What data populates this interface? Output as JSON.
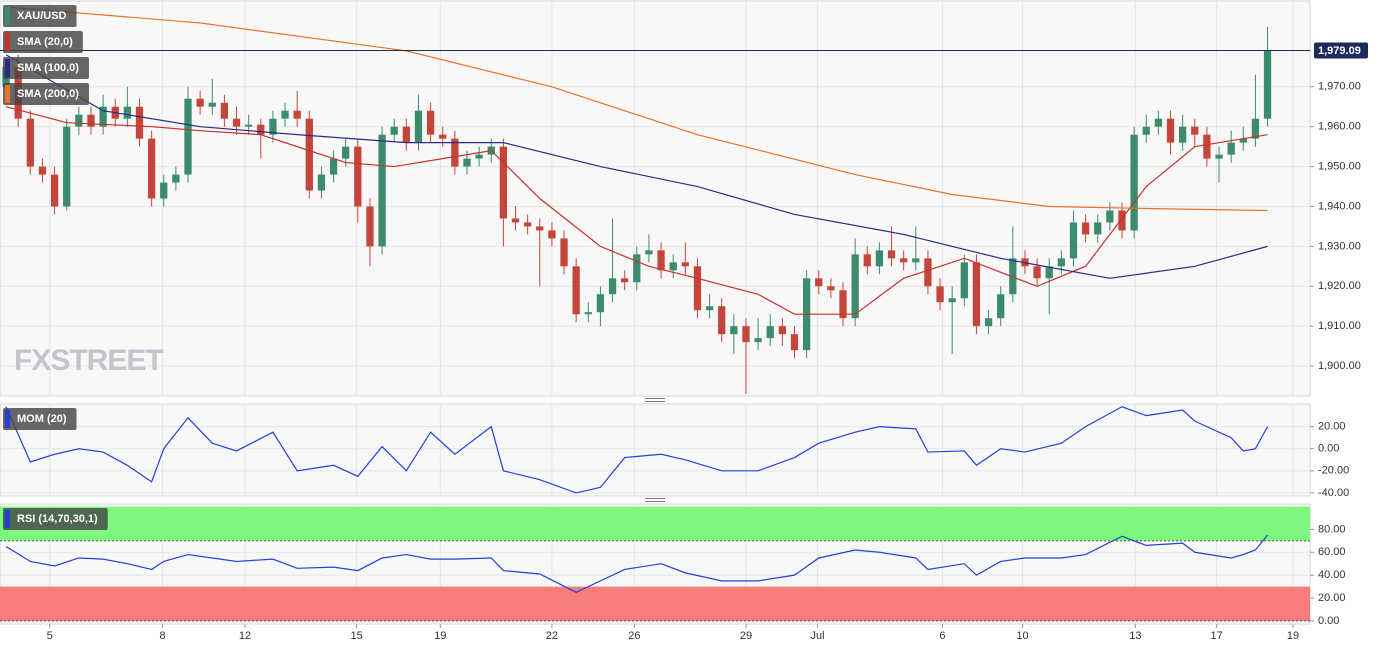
{
  "chart_data": [
    {
      "type": "candlestick",
      "title": "XAU/USD",
      "watermark": "FXSTREET",
      "up_color": "#3a8c6c",
      "down_color": "#c5453a",
      "xlim": [
        -0.5,
        107.5
      ],
      "ylim": [
        1892.5,
        1991.5
      ],
      "yticks": [
        {
          "value": 1900,
          "label": "1,900.00"
        },
        {
          "value": 1910,
          "label": "1,910.00"
        },
        {
          "value": 1920,
          "label": "1,920.00"
        },
        {
          "value": 1930,
          "label": "1,930.00"
        },
        {
          "value": 1940,
          "label": "1,940.00"
        },
        {
          "value": 1950,
          "label": "1,950.00"
        },
        {
          "value": 1960,
          "label": "1,960.00"
        },
        {
          "value": 1970,
          "label": "1,970.00"
        }
      ],
      "last_price": {
        "value": 1979.09,
        "label": "1,979.09"
      },
      "grid": true,
      "open": [
        1970,
        1975,
        1962,
        1950,
        1948,
        1940,
        1960,
        1963,
        1960,
        1965,
        1962,
        1965,
        1957,
        1942,
        1946,
        1948,
        1967,
        1965,
        1966,
        1962,
        1960,
        1960.5,
        1958,
        1962,
        1964,
        1962,
        1944,
        1948,
        1952,
        1955,
        1940,
        1930,
        1958,
        1960,
        1956,
        1964,
        1958,
        1957,
        1950,
        1952,
        1953,
        1955,
        1937,
        1936,
        1935,
        1934,
        1932,
        1925,
        1913,
        1913.5,
        1918,
        1922,
        1921,
        1928,
        1929,
        1924,
        1926,
        1925,
        1914,
        1915,
        1908,
        1910,
        1906,
        1907,
        1910,
        1908,
        1904,
        1922,
        1920,
        1919,
        1912,
        1928,
        1925,
        1929,
        1927,
        1926,
        1927,
        1920,
        1916,
        1917,
        1926,
        1910,
        1912,
        1918,
        1927,
        1925,
        1922,
        1925,
        1927,
        1936,
        1933,
        1936,
        1939,
        1934,
        1958,
        1960,
        1962,
        1956,
        1960,
        1958,
        1952,
        1953,
        1956,
        1957,
        1962
      ],
      "high": [
        1977,
        1978,
        1964,
        1952,
        1950,
        1962,
        1965,
        1965,
        1968,
        1967,
        1970,
        1967,
        1959,
        1948,
        1950,
        1970,
        1969,
        1972,
        1968,
        1965,
        1963,
        1962,
        1964,
        1966,
        1969,
        1964,
        1950,
        1954,
        1957,
        1957,
        1942,
        1960,
        1962,
        1962,
        1968,
        1966,
        1960,
        1959,
        1954,
        1955,
        1957,
        1957,
        1940,
        1938,
        1937,
        1936,
        1934,
        1927,
        1916,
        1920,
        1937,
        1924,
        1930,
        1933,
        1931,
        1928,
        1931,
        1927,
        1918,
        1917,
        1913,
        1912,
        1912,
        1913,
        1912,
        1910,
        1924,
        1924,
        1922,
        1921,
        1932,
        1930,
        1931,
        1935,
        1929,
        1935,
        1929,
        1922,
        1920,
        1928,
        1928,
        1914,
        1920,
        1935,
        1929,
        1927,
        1927,
        1929,
        1939,
        1938,
        1938,
        1941,
        1941,
        1960,
        1963,
        1964,
        1964,
        1963,
        1962,
        1960,
        1955,
        1959,
        1960,
        1973,
        1985
      ],
      "low": [
        1968,
        1960,
        1948,
        1946,
        1938,
        1939,
        1958,
        1958,
        1958,
        1960,
        1960,
        1955,
        1940,
        1940,
        1944,
        1946,
        1963,
        1963,
        1960,
        1958,
        1958,
        1952,
        1956,
        1960,
        1960,
        1942,
        1942,
        1946,
        1950,
        1936,
        1925,
        1928,
        1956,
        1954,
        1954,
        1956,
        1955,
        1948,
        1948,
        1950,
        1951,
        1930,
        1934,
        1933,
        1920,
        1930,
        1923,
        1911,
        1911,
        1910,
        1916,
        1919,
        1919,
        1926,
        1922,
        1922,
        1923,
        1912,
        1912,
        1906,
        1903,
        1893,
        1904,
        1905,
        1905,
        1902,
        1902,
        1918,
        1917,
        1910,
        1910,
        1923,
        1923,
        1925,
        1924,
        1924,
        1918,
        1914,
        1903,
        1915,
        1908,
        1908,
        1910,
        1916,
        1923,
        1920,
        1913,
        1923,
        1925,
        1931,
        1931,
        1934,
        1932,
        1932,
        1956,
        1958,
        1953,
        1954,
        1955,
        1950,
        1946,
        1951,
        1954,
        1955,
        1960
      ],
      "close": [
        1975,
        1962,
        1950,
        1948,
        1940,
        1960,
        1963,
        1960,
        1965,
        1962,
        1965,
        1957,
        1942,
        1946,
        1948,
        1967,
        1965,
        1966,
        1962,
        1960,
        1960.5,
        1958,
        1962,
        1964,
        1962,
        1944,
        1948,
        1952,
        1955,
        1940,
        1930,
        1958,
        1960,
        1956,
        1964,
        1958,
        1957,
        1950,
        1952,
        1953,
        1955,
        1937,
        1936,
        1935,
        1934,
        1932,
        1925,
        1913,
        1913.5,
        1918,
        1922,
        1921,
        1928,
        1929,
        1924,
        1926,
        1925,
        1914,
        1915,
        1908,
        1910,
        1906,
        1907,
        1910,
        1908,
        1904,
        1922,
        1920,
        1919,
        1912,
        1928,
        1925,
        1929,
        1927,
        1926,
        1927,
        1920,
        1916,
        1917,
        1926,
        1910,
        1912,
        1918,
        1927,
        1925,
        1922,
        1925,
        1927,
        1936,
        1933,
        1936,
        1939,
        1934,
        1958,
        1960,
        1962,
        1956,
        1960,
        1958,
        1952,
        1953,
        1956,
        1957,
        1962,
        1979.09
      ],
      "series": [
        {
          "name": "SMA (20,0)",
          "color": "#c8302a",
          "x": [
            0,
            5,
            12,
            16,
            21,
            24,
            28,
            32,
            36,
            40,
            44,
            49,
            53,
            57,
            62,
            65,
            70,
            74,
            79,
            85,
            89,
            94,
            98,
            104
          ],
          "values": [
            1965,
            1961,
            1960,
            1959,
            1958,
            1955,
            1951,
            1950,
            1952,
            1954,
            1942,
            1930,
            1925,
            1922,
            1918,
            1913,
            1913,
            1922,
            1927,
            1920,
            1925,
            1945,
            1955,
            1958
          ]
        },
        {
          "name": "SMA (100,0)",
          "color": "#2a2a8a",
          "x": [
            0,
            8,
            16,
            24,
            33,
            41,
            49,
            57,
            65,
            74,
            82,
            91,
            98,
            104
          ],
          "values": [
            1978,
            1964,
            1960,
            1958,
            1956,
            1956,
            1950,
            1945,
            1938,
            1933,
            1927,
            1922,
            1925,
            1930
          ]
        },
        {
          "name": "SMA (200,0)",
          "color": "#e8742a",
          "x": [
            0,
            16,
            33,
            45,
            57,
            70,
            78,
            86,
            94,
            104
          ],
          "values": [
            1990,
            1986,
            1979,
            1970,
            1958,
            1948,
            1943,
            1940,
            1939.5,
            1939
          ]
        }
      ]
    },
    {
      "type": "line",
      "xlim": [
        -0.5,
        107.5
      ],
      "ylim": [
        -42.8,
        40.5
      ],
      "grid": true,
      "yticks": [
        {
          "value": 20,
          "label": "20.00"
        },
        {
          "value": 0,
          "label": "0.00"
        },
        {
          "value": -20,
          "label": "-20.00"
        },
        {
          "value": -40,
          "label": "-40.00"
        }
      ],
      "series": [
        {
          "name": "MOM (20)",
          "color": "#2440d8",
          "x": [
            0,
            2,
            4,
            6,
            8,
            10,
            12,
            13,
            15,
            17,
            19,
            22,
            24,
            27,
            29,
            31,
            33,
            35,
            37,
            40,
            41,
            44,
            47,
            49,
            51,
            54,
            56,
            59,
            62,
            65,
            67,
            70,
            72,
            75,
            76,
            79,
            80,
            82,
            84,
            87,
            89,
            92,
            94,
            97,
            98,
            101,
            102,
            103,
            104
          ],
          "values": [
            38,
            -12,
            -5,
            0,
            -3,
            -15,
            -30,
            0,
            28,
            5,
            -2,
            15,
            -20,
            -15,
            -25,
            2,
            -20,
            15,
            -5,
            20,
            -20,
            -28,
            -40,
            -35,
            -8,
            -5,
            -10,
            -20,
            -20,
            -8,
            5,
            15,
            20,
            18,
            -3,
            -2,
            -15,
            0,
            -3,
            5,
            20,
            38,
            30,
            35,
            25,
            10,
            -2,
            0,
            20
          ]
        }
      ]
    },
    {
      "type": "line",
      "xlim": [
        -0.5,
        107.5
      ],
      "ylim": [
        -2.7,
        102.2
      ],
      "grid": true,
      "yticks": [
        {
          "value": 80,
          "label": "80.00"
        },
        {
          "value": 60,
          "label": "60.00"
        },
        {
          "value": 40,
          "label": "40.00"
        },
        {
          "value": 20,
          "label": "20.00"
        },
        {
          "value": 0,
          "label": "0.00"
        }
      ],
      "bands": [
        {
          "from": 70,
          "to": 100,
          "color": "#7ef77e"
        },
        {
          "from": 0,
          "to": 30,
          "color": "#f77c7c"
        }
      ],
      "xticks": [
        {
          "value": 3.6,
          "label": "5"
        },
        {
          "value": 12.9,
          "label": "8"
        },
        {
          "value": 19.7,
          "label": "12"
        },
        {
          "value": 28.9,
          "label": "15"
        },
        {
          "value": 35.8,
          "label": "19"
        },
        {
          "value": 45.0,
          "label": "22"
        },
        {
          "value": 51.8,
          "label": "26"
        },
        {
          "value": 61.0,
          "label": "29"
        },
        {
          "value": 66.9,
          "label": "Jul"
        },
        {
          "value": 77.2,
          "label": "6"
        },
        {
          "value": 83.8,
          "label": "10"
        },
        {
          "value": 93.1,
          "label": "13"
        },
        {
          "value": 99.8,
          "label": "17"
        },
        {
          "value": 106.1,
          "label": "19"
        }
      ],
      "series": [
        {
          "name": "RSI (14,70,30,1)",
          "color": "#2440d8",
          "x": [
            0,
            2,
            4,
            6,
            8,
            10,
            12,
            13,
            15,
            17,
            19,
            22,
            24,
            27,
            29,
            31,
            33,
            35,
            37,
            40,
            41,
            44,
            47,
            49,
            51,
            54,
            56,
            59,
            62,
            65,
            67,
            70,
            72,
            75,
            76,
            79,
            80,
            82,
            84,
            87,
            89,
            92,
            94,
            97,
            98,
            101,
            102,
            103,
            104
          ],
          "values": [
            65,
            52,
            48,
            55,
            54,
            50,
            45,
            52,
            58,
            55,
            52,
            54,
            46,
            47,
            44,
            55,
            58,
            54,
            54,
            55,
            44,
            41,
            25,
            35,
            45,
            50,
            42,
            35,
            35,
            40,
            55,
            62,
            60,
            55,
            45,
            50,
            40,
            52,
            55,
            55,
            58,
            74,
            66,
            68,
            60,
            55,
            58,
            62,
            75
          ]
        }
      ]
    }
  ]
}
